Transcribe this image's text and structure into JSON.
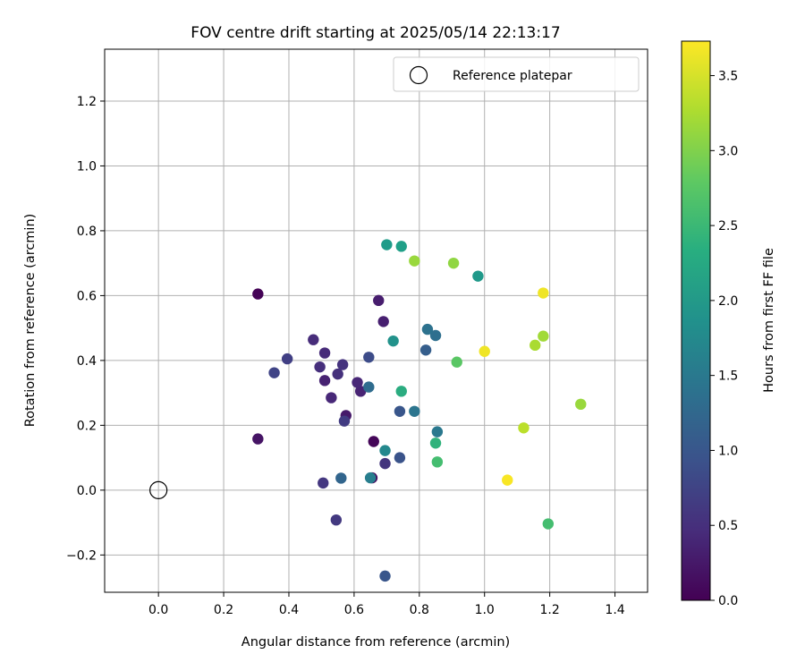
{
  "chart_data": {
    "type": "scatter",
    "title": "FOV centre drift starting at 2025/05/14 22:13:17",
    "xlabel": "Angular distance from reference (arcmin)",
    "ylabel": "Rotation from reference (arcmin)",
    "xlim": [
      -0.165,
      1.5
    ],
    "ylim": [
      -0.315,
      1.36
    ],
    "xticks": [
      0.0,
      0.2,
      0.4,
      0.6,
      0.8,
      1.0,
      1.2,
      1.4
    ],
    "xtick_labels": [
      "0.0",
      "0.2",
      "0.4",
      "0.6",
      "0.8",
      "1.0",
      "1.2",
      "1.4"
    ],
    "yticks": [
      -0.2,
      0.0,
      0.2,
      0.4,
      0.6,
      0.8,
      1.0,
      1.2
    ],
    "ytick_labels": [
      "−0.2",
      "0.0",
      "0.2",
      "0.4",
      "0.6",
      "0.8",
      "1.0",
      "1.2"
    ],
    "grid": true,
    "legend": {
      "position": "top-right",
      "label": "Reference platepar"
    },
    "reference_point": {
      "x": 0.0,
      "y": 0.0
    },
    "colorbar": {
      "label": "Hours from first FF file",
      "colormap": "viridis",
      "range": [
        0.0,
        3.73
      ],
      "ticks": [
        0.0,
        0.5,
        1.0,
        1.5,
        2.0,
        2.5,
        3.0,
        3.5
      ],
      "tick_labels": [
        "0.0",
        "0.5",
        "1.0",
        "1.5",
        "2.0",
        "2.5",
        "3.0",
        "3.5"
      ]
    },
    "points": [
      {
        "x": 0.305,
        "y": 0.605,
        "h": 0.02
      },
      {
        "x": 0.66,
        "y": 0.15,
        "h": 0.05
      },
      {
        "x": 0.655,
        "y": 0.038,
        "h": 0.1
      },
      {
        "x": 0.305,
        "y": 0.158,
        "h": 0.2
      },
      {
        "x": 0.575,
        "y": 0.23,
        "h": 0.25
      },
      {
        "x": 0.675,
        "y": 0.585,
        "h": 0.3
      },
      {
        "x": 0.69,
        "y": 0.52,
        "h": 0.32
      },
      {
        "x": 0.51,
        "y": 0.338,
        "h": 0.35
      },
      {
        "x": 0.62,
        "y": 0.305,
        "h": 0.37
      },
      {
        "x": 0.61,
        "y": 0.332,
        "h": 0.4
      },
      {
        "x": 0.53,
        "y": 0.285,
        "h": 0.42
      },
      {
        "x": 0.51,
        "y": 0.423,
        "h": 0.45
      },
      {
        "x": 0.475,
        "y": 0.464,
        "h": 0.47
      },
      {
        "x": 0.495,
        "y": 0.38,
        "h": 0.5
      },
      {
        "x": 0.55,
        "y": 0.358,
        "h": 0.52
      },
      {
        "x": 0.565,
        "y": 0.387,
        "h": 0.55
      },
      {
        "x": 0.695,
        "y": 0.082,
        "h": 0.57
      },
      {
        "x": 0.505,
        "y": 0.022,
        "h": 0.6
      },
      {
        "x": 0.545,
        "y": -0.092,
        "h": 0.62
      },
      {
        "x": 0.57,
        "y": 0.213,
        "h": 0.65
      },
      {
        "x": 0.395,
        "y": 0.405,
        "h": 0.7
      },
      {
        "x": 0.355,
        "y": 0.362,
        "h": 0.75
      },
      {
        "x": 0.645,
        "y": 0.41,
        "h": 0.85
      },
      {
        "x": 0.74,
        "y": 0.1,
        "h": 0.95
      },
      {
        "x": 0.74,
        "y": 0.243,
        "h": 1.0
      },
      {
        "x": 0.695,
        "y": -0.265,
        "h": 1.0
      },
      {
        "x": 0.82,
        "y": 0.432,
        "h": 1.1
      },
      {
        "x": 0.56,
        "y": 0.037,
        "h": 1.2
      },
      {
        "x": 0.645,
        "y": 0.318,
        "h": 1.3
      },
      {
        "x": 0.85,
        "y": 0.477,
        "h": 1.35
      },
      {
        "x": 0.825,
        "y": 0.496,
        "h": 1.4
      },
      {
        "x": 0.785,
        "y": 0.243,
        "h": 1.45
      },
      {
        "x": 0.855,
        "y": 0.18,
        "h": 1.5
      },
      {
        "x": 0.65,
        "y": 0.038,
        "h": 1.6
      },
      {
        "x": 0.695,
        "y": 0.122,
        "h": 1.75
      },
      {
        "x": 0.72,
        "y": 0.46,
        "h": 1.9
      },
      {
        "x": 0.98,
        "y": 0.66,
        "h": 2.0
      },
      {
        "x": 0.7,
        "y": 0.757,
        "h": 2.05
      },
      {
        "x": 0.745,
        "y": 0.752,
        "h": 2.1
      },
      {
        "x": 0.745,
        "y": 0.305,
        "h": 2.3
      },
      {
        "x": 0.85,
        "y": 0.145,
        "h": 2.4
      },
      {
        "x": 0.855,
        "y": 0.087,
        "h": 2.6
      },
      {
        "x": 1.195,
        "y": -0.104,
        "h": 2.6
      },
      {
        "x": 0.915,
        "y": 0.395,
        "h": 2.75
      },
      {
        "x": 0.905,
        "y": 0.7,
        "h": 3.1
      },
      {
        "x": 0.785,
        "y": 0.707,
        "h": 3.15
      },
      {
        "x": 1.295,
        "y": 0.265,
        "h": 3.15
      },
      {
        "x": 1.18,
        "y": 0.475,
        "h": 3.2
      },
      {
        "x": 1.155,
        "y": 0.447,
        "h": 3.25
      },
      {
        "x": 1.12,
        "y": 0.192,
        "h": 3.35
      },
      {
        "x": 1.18,
        "y": 0.608,
        "h": 3.65
      },
      {
        "x": 1.0,
        "y": 0.428,
        "h": 3.65
      },
      {
        "x": 1.07,
        "y": 0.031,
        "h": 3.7
      }
    ]
  }
}
